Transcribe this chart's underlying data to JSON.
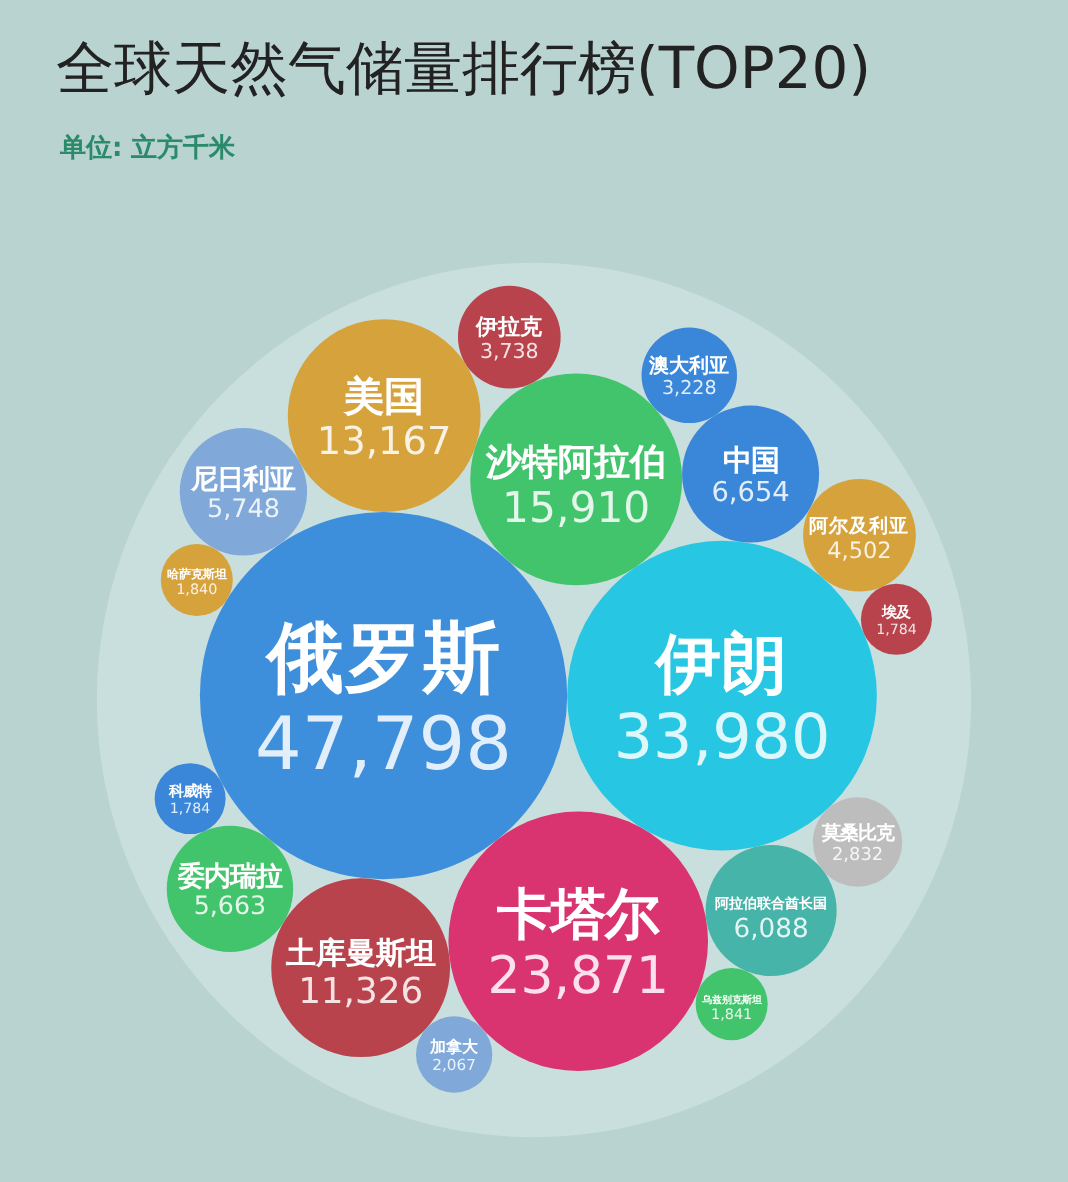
{
  "chart_data": {
    "type": "other",
    "title": "全球天然气储量排行榜(TOP20)",
    "annotations": [
      "单位: 立方千米"
    ],
    "value_labels": [
      "47,798",
      "33,980",
      "23,871",
      "15,910",
      "13,167",
      "11,326",
      "6,654",
      "6,088",
      "5,748",
      "5,663",
      "4,502",
      "3,738",
      "3,228",
      "2,832",
      "2,067",
      "1,841",
      "1,840",
      "1,784",
      "1,784"
    ],
    "categories": [
      "俄罗斯",
      "伊朗",
      "卡塔尔",
      "沙特阿拉伯",
      "美国",
      "土库曼斯坦",
      "中国",
      "阿拉伯联合酋长国",
      "尼日利亚",
      "委内瑞拉",
      "阿尔及利亚",
      "伊拉克",
      "澳大利亚",
      "莫桑比克",
      "加拿大",
      "乌兹别克斯坦",
      "哈萨克斯坦",
      "科威特",
      "埃及"
    ],
    "values": [
      47798,
      33980,
      23871,
      15910,
      13167,
      11326,
      6654,
      6088,
      5748,
      5663,
      4502,
      3738,
      3228,
      2832,
      2067,
      1841,
      1840,
      1784,
      1784
    ],
    "colors": [
      "#3d8fdb",
      "#27c6e2",
      "#d93370",
      "#42c46c",
      "#d6a23c",
      "#b9434c",
      "#3a86d8",
      "#46b4a8",
      "#80a9d9",
      "#42c46c",
      "#d6a23c",
      "#b9434c",
      "#3a86d8",
      "#bdbdbd",
      "#80a9d9",
      "#42c46c",
      "#d6a23c",
      "#3a86d8",
      "#b9434c"
    ]
  }
}
